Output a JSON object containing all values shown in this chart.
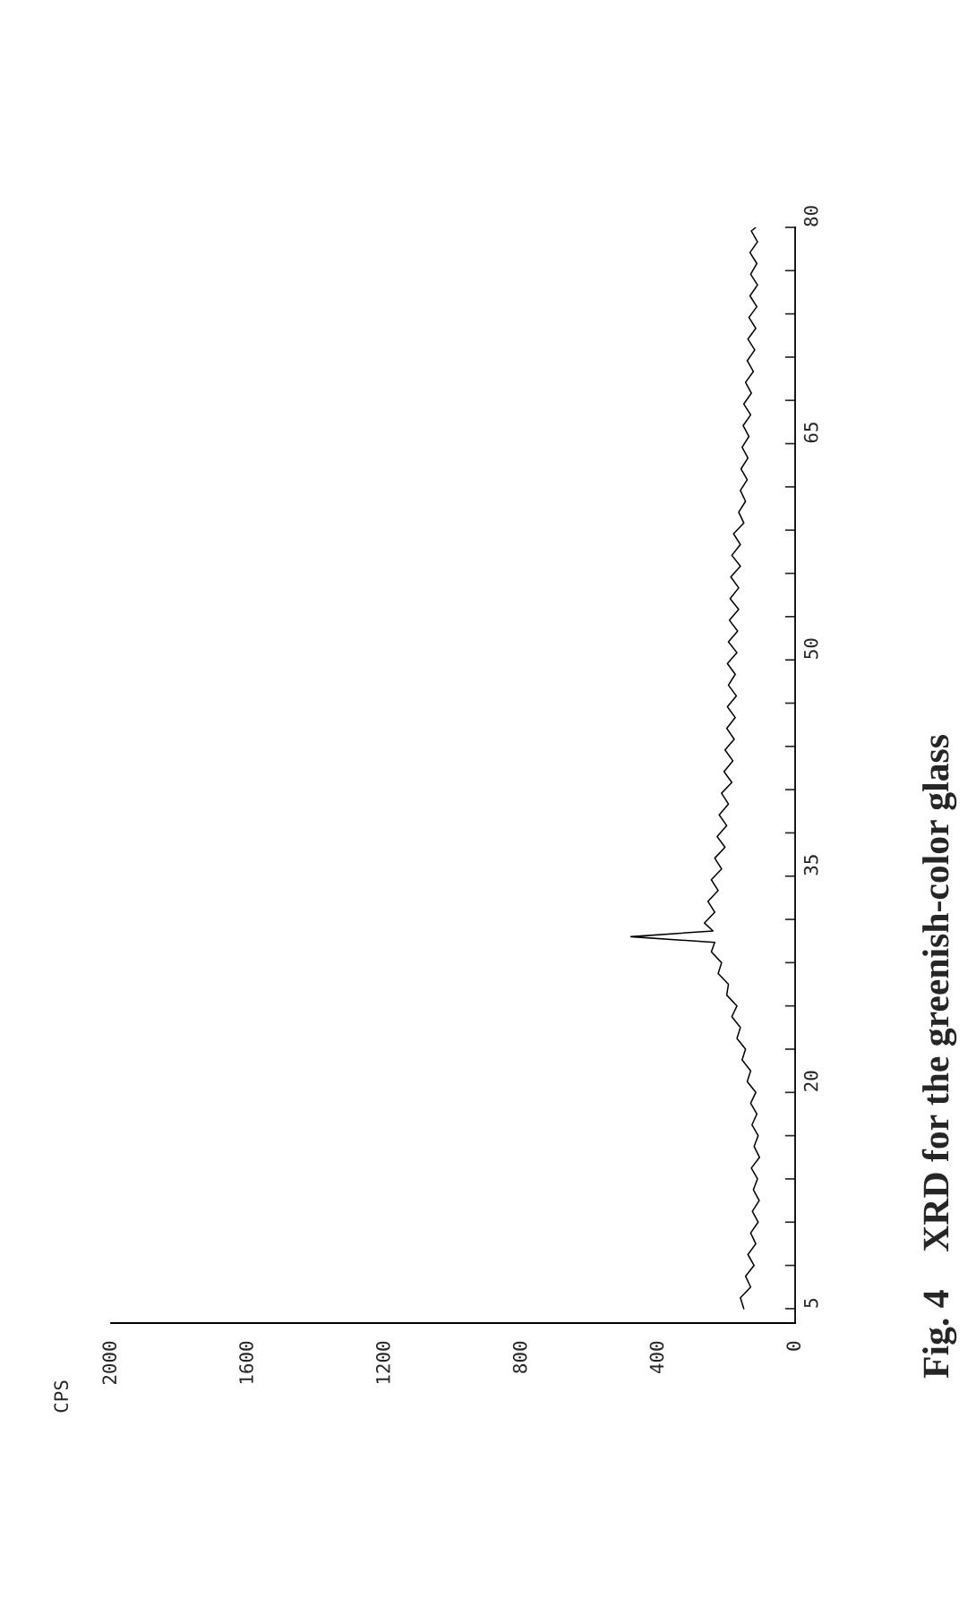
{
  "chart_data": {
    "type": "line",
    "title": "Fig. 4    XRD for the greenish-color glass",
    "annotations": [
      "CPS"
    ],
    "xlim": [
      2000,
      0
    ],
    "xticks": [
      0,
      400,
      800,
      1200,
      1600,
      2000
    ],
    "ylim": [
      4,
      80
    ],
    "yticks": [
      5,
      {
        "value": 8,
        "label": null
      },
      {
        "value": 11,
        "label": null
      },
      {
        "value": 14,
        "label": null
      },
      {
        "value": 17,
        "label": null
      },
      20,
      {
        "value": 23,
        "label": null
      },
      {
        "value": 26,
        "label": null
      },
      {
        "value": 29,
        "label": null
      },
      {
        "value": 32,
        "label": null
      },
      35,
      {
        "value": 38,
        "label": null
      },
      {
        "value": 41,
        "label": null
      },
      {
        "value": 44,
        "label": null
      },
      {
        "value": 47,
        "label": null
      },
      50,
      {
        "value": 53,
        "label": null
      },
      {
        "value": 56,
        "label": null
      },
      {
        "value": 59,
        "label": null
      },
      {
        "value": 62,
        "label": null
      },
      65,
      {
        "value": 68,
        "label": null
      },
      {
        "value": 71,
        "label": null
      },
      {
        "value": 74,
        "label": null
      },
      {
        "value": 77,
        "label": null
      },
      80
    ],
    "grid": false,
    "series": [
      {
        "color": "#000000",
        "values": [
          5,
          5.75,
          6.5,
          7.25,
          8,
          8.75,
          9.5,
          10.25,
          11,
          11.75,
          12.5,
          13.25,
          14,
          14.75,
          15.5,
          16.25,
          17,
          17.75,
          18.5,
          19.25,
          20,
          20.75,
          21.5,
          22.25,
          23,
          23.75,
          24.5,
          25.25,
          26,
          26.75,
          27.5,
          28.25,
          29,
          29.75,
          30.4,
          30.8,
          31.2,
          31.75,
          32.5,
          33.25,
          34,
          34.75,
          35.5,
          36.25,
          37,
          37.75,
          38.5,
          39.25,
          40,
          40.75,
          41.5,
          42.25,
          43,
          43.75,
          44.5,
          45.25,
          46,
          46.75,
          47.5,
          48.25,
          49,
          49.75,
          50.5,
          51.25,
          52,
          52.75,
          53.5,
          54.25,
          55,
          55.75,
          56.5,
          57.25,
          58,
          58.75,
          59.5,
          60.25,
          61,
          61.75,
          62.5,
          63.25,
          64,
          64.75,
          65.5,
          66.25,
          67,
          67.75,
          68.5,
          69.25,
          70,
          70.75,
          71.5,
          72.25,
          73,
          73.75,
          74.5,
          75.25,
          76,
          76.75,
          77.5,
          78.25,
          79,
          79.75,
          80
        ],
        "x": [
          150,
          160,
          130,
          145,
          120,
          138,
          115,
          130,
          108,
          125,
          105,
          122,
          110,
          128,
          104,
          120,
          108,
          126,
          112,
          130,
          115,
          140,
          130,
          155,
          145,
          170,
          160,
          185,
          170,
          200,
          195,
          225,
          215,
          245,
          235,
          480,
          240,
          265,
          235,
          255,
          225,
          245,
          215,
          235,
          205,
          228,
          200,
          222,
          195,
          215,
          185,
          208,
          182,
          205,
          178,
          200,
          175,
          198,
          172,
          195,
          175,
          198,
          170,
          195,
          168,
          192,
          165,
          190,
          165,
          188,
          160,
          185,
          160,
          180,
          150,
          165,
          145,
          160,
          140,
          158,
          138,
          155,
          135,
          152,
          130,
          150,
          128,
          145,
          122,
          140,
          118,
          138,
          115,
          135,
          112,
          132,
          110,
          130,
          112,
          132,
          110,
          128,
          115
        ]
      }
    ]
  }
}
